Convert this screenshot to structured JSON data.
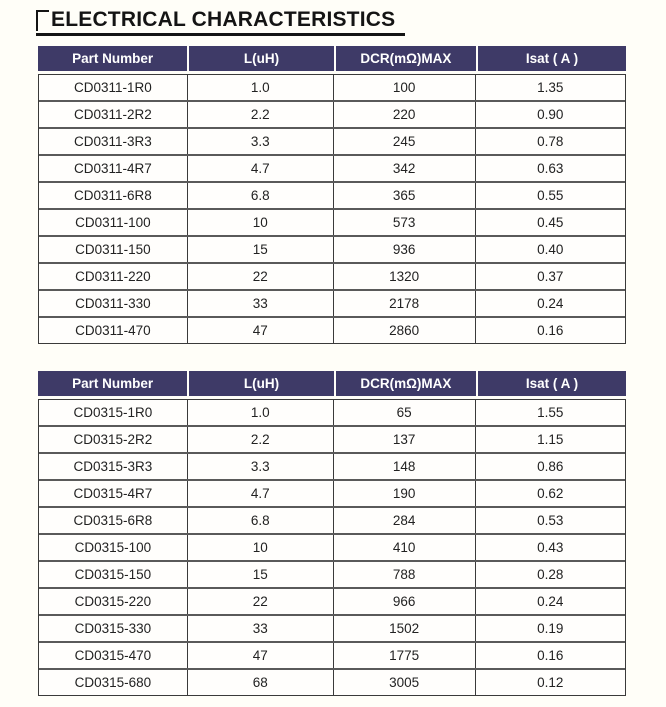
{
  "page": {
    "title": "ELECTRICAL CHARACTERISTICS"
  },
  "colors": {
    "header_bg": "#3e3a67",
    "header_text": "#ffffff",
    "grid_border": "#3a3a3a",
    "page_bg": "#fffef8",
    "title_text": "#141414"
  },
  "tables": [
    {
      "series": "CD0311",
      "headers": [
        "Part Number",
        "L(uH)",
        "DCR(mΩ)MAX",
        "Isat ( A )"
      ],
      "rows": [
        [
          "CD0311-1R0",
          "1.0",
          "100",
          "1.35"
        ],
        [
          "CD0311-2R2",
          "2.2",
          "220",
          "0.90"
        ],
        [
          "CD0311-3R3",
          "3.3",
          "245",
          "0.78"
        ],
        [
          "CD0311-4R7",
          "4.7",
          "342",
          "0.63"
        ],
        [
          "CD0311-6R8",
          "6.8",
          "365",
          "0.55"
        ],
        [
          "CD0311-100",
          "10",
          "573",
          "0.45"
        ],
        [
          "CD0311-150",
          "15",
          "936",
          "0.40"
        ],
        [
          "CD0311-220",
          "22",
          "1320",
          "0.37"
        ],
        [
          "CD0311-330",
          "33",
          "2178",
          "0.24"
        ],
        [
          "CD0311-470",
          "47",
          "2860",
          "0.16"
        ]
      ]
    },
    {
      "series": "CD0315",
      "headers": [
        "Part Number",
        "L(uH)",
        "DCR(mΩ)MAX",
        "Isat ( A )"
      ],
      "rows": [
        [
          "CD0315-1R0",
          "1.0",
          "65",
          "1.55"
        ],
        [
          "CD0315-2R2",
          "2.2",
          "137",
          "1.15"
        ],
        [
          "CD0315-3R3",
          "3.3",
          "148",
          "0.86"
        ],
        [
          "CD0315-4R7",
          "4.7",
          "190",
          "0.62"
        ],
        [
          "CD0315-6R8",
          "6.8",
          "284",
          "0.53"
        ],
        [
          "CD0315-100",
          "10",
          "410",
          "0.43"
        ],
        [
          "CD0315-150",
          "15",
          "788",
          "0.28"
        ],
        [
          "CD0315-220",
          "22",
          "966",
          "0.24"
        ],
        [
          "CD0315-330",
          "33",
          "1502",
          "0.19"
        ],
        [
          "CD0315-470",
          "47",
          "1775",
          "0.16"
        ],
        [
          "CD0315-680",
          "68",
          "3005",
          "0.12"
        ]
      ]
    }
  ]
}
